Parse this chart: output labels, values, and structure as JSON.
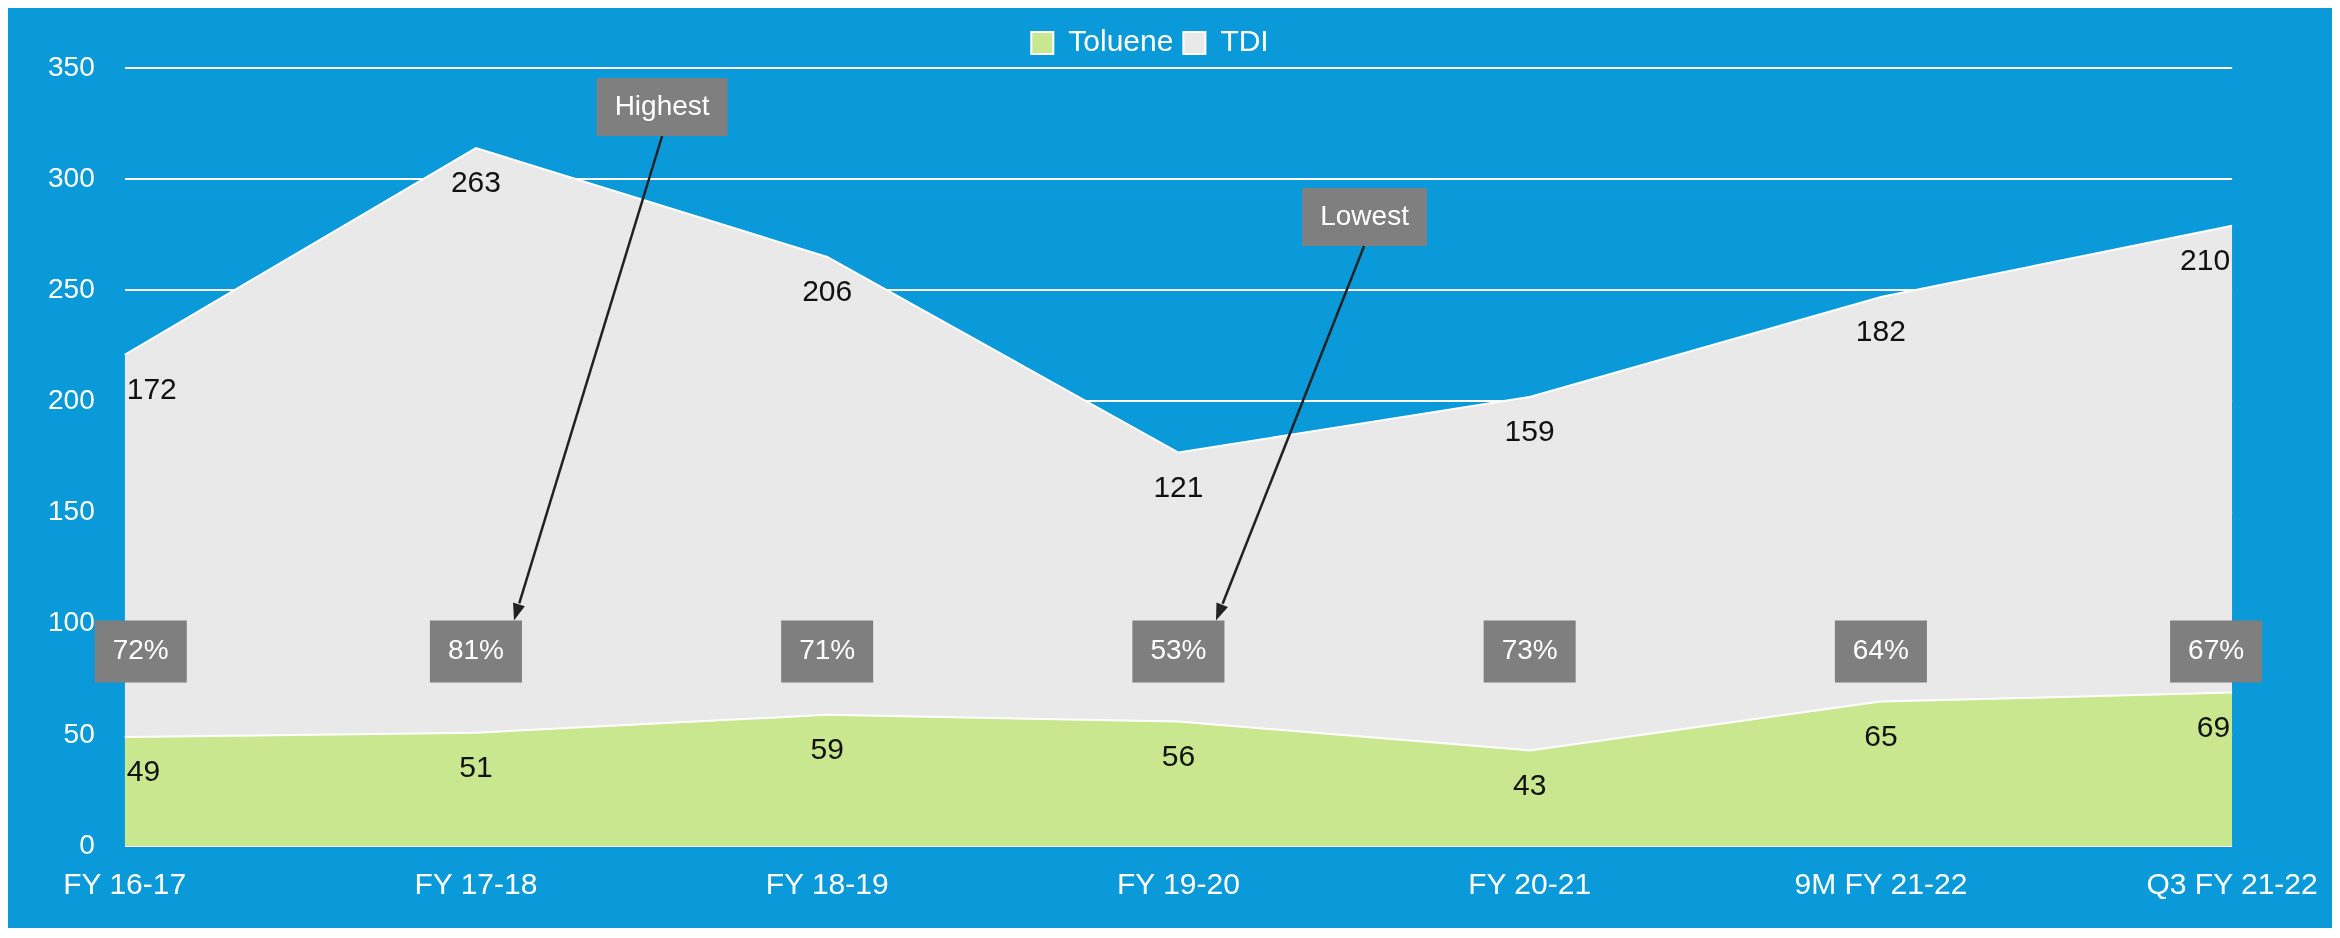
{
  "chart_data": {
    "type": "area",
    "stacked": true,
    "categories": [
      "FY 16-17",
      "FY 17-18",
      "FY 18-19",
      "FY 19-20",
      "FY 20-21",
      "9M FY 21-22",
      "Q3 FY 21-22"
    ],
    "series": [
      {
        "name": "Toluene",
        "color": "#c9e78f",
        "values": [
          49,
          51,
          59,
          56,
          43,
          65,
          69
        ],
        "value_labels": [
          "49",
          "51",
          "59",
          "56",
          "43",
          "65",
          "69"
        ]
      },
      {
        "name": "TDI",
        "color": "#e9e9e9",
        "values": [
          172,
          263,
          206,
          121,
          159,
          182,
          210
        ],
        "value_labels": [
          "172",
          "263",
          "206",
          "121",
          "159",
          "182",
          "210"
        ]
      }
    ],
    "ylim": [
      0,
      350
    ],
    "yticks": [
      0,
      50,
      100,
      150,
      200,
      250,
      300,
      350
    ],
    "grid": "y",
    "legend": "top",
    "annotations": [
      "72%",
      "81%",
      "71%",
      "53%",
      "73%",
      "64%",
      "67%",
      "Highest",
      "Lowest"
    ]
  }
}
